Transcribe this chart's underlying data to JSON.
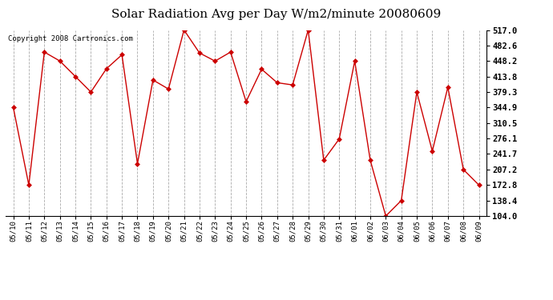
{
  "title": "Solar Radiation Avg per Day W/m2/minute 20080609",
  "copyright": "Copyright 2008 Cartronics.com",
  "labels": [
    "05/10",
    "05/11",
    "05/12",
    "05/13",
    "05/14",
    "05/15",
    "05/16",
    "05/17",
    "05/18",
    "05/19",
    "05/20",
    "05/21",
    "05/22",
    "05/23",
    "05/24",
    "05/25",
    "05/26",
    "05/27",
    "05/28",
    "05/29",
    "05/30",
    "05/31",
    "06/01",
    "06/02",
    "06/03",
    "06/04",
    "06/05",
    "06/06",
    "06/07",
    "06/08",
    "06/09"
  ],
  "values": [
    344.9,
    172.8,
    468.0,
    448.2,
    413.8,
    379.3,
    431.0,
    462.0,
    220.0,
    406.0,
    386.0,
    517.0,
    466.0,
    448.0,
    468.0,
    358.0,
    430.0,
    400.0,
    395.0,
    517.0,
    228.0,
    275.0,
    448.0,
    228.0,
    104.0,
    138.4,
    379.3,
    248.0,
    390.0,
    207.2,
    172.8
  ],
  "line_color": "#cc0000",
  "marker": "D",
  "marker_size": 3,
  "bg_color": "#ffffff",
  "grid_color": "#aaaaaa",
  "ylim_min": 104.0,
  "ylim_max": 517.0,
  "yticks": [
    104.0,
    138.4,
    172.8,
    207.2,
    241.7,
    276.1,
    310.5,
    344.9,
    379.3,
    413.8,
    448.2,
    482.6,
    517.0
  ],
  "title_fontsize": 11,
  "copyright_fontsize": 6.5,
  "tick_fontsize": 6.5,
  "ylabel_right_fontsize": 7.5
}
